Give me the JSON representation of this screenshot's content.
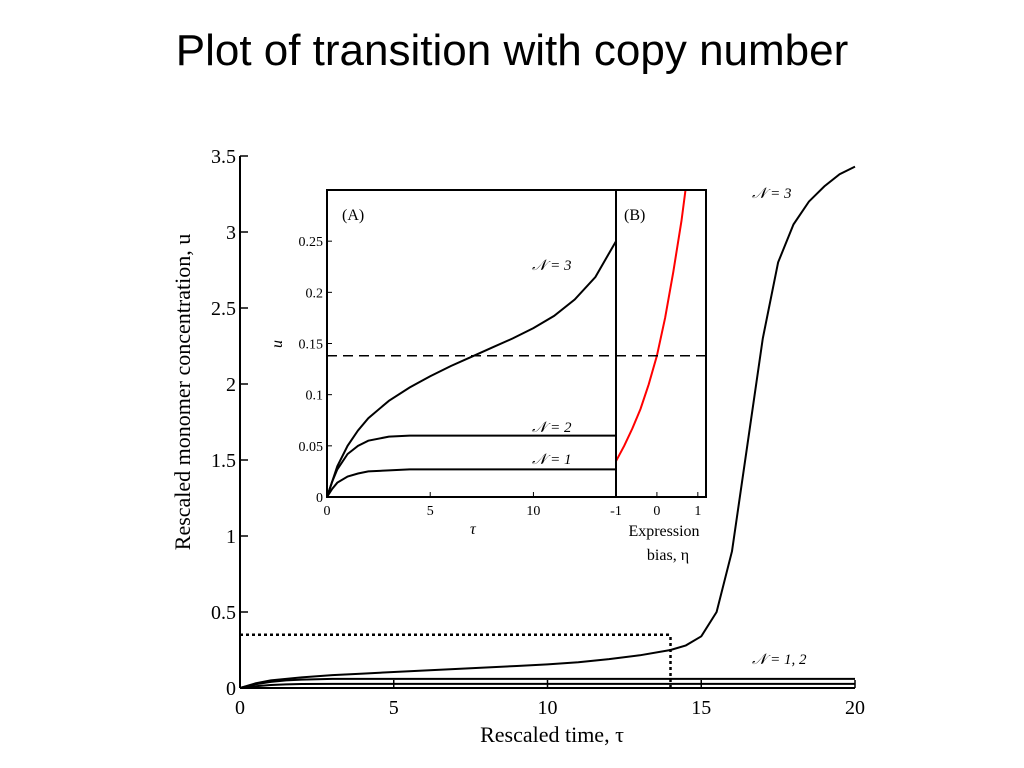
{
  "slide": {
    "title": "Plot of transition with copy number"
  },
  "chart_data": [
    {
      "type": "line",
      "id": "main",
      "xlabel": "Rescaled time, τ",
      "ylabel": "Rescaled monomer concentration, u",
      "xlim": [
        0,
        20
      ],
      "ylim": [
        0,
        3.5
      ],
      "xticks": [
        0,
        5,
        10,
        15,
        20
      ],
      "xtick_labels": [
        "0",
        "5",
        "10",
        "15",
        "20"
      ],
      "yticks": [
        0,
        0.5,
        1,
        1.5,
        2,
        2.5,
        3,
        3.5
      ],
      "ytick_labels": [
        "0",
        "0.5",
        "1",
        "1.5",
        "2",
        "2.5",
        "3",
        "3.5"
      ],
      "grid": false,
      "series": [
        {
          "name": "N = 3",
          "label": "𝒩 = 3",
          "color": "#000000",
          "dash": "solid",
          "x": [
            0,
            0.5,
            1,
            2,
            3,
            4,
            5,
            6,
            7,
            8,
            9,
            10,
            11,
            12,
            13,
            14,
            14.5,
            15,
            15.5,
            16,
            16.5,
            17,
            17.5,
            18,
            18.5,
            19,
            19.5,
            20
          ],
          "y": [
            0,
            0.03,
            0.05,
            0.07,
            0.085,
            0.095,
            0.105,
            0.115,
            0.125,
            0.135,
            0.145,
            0.155,
            0.17,
            0.19,
            0.215,
            0.25,
            0.28,
            0.34,
            0.5,
            0.9,
            1.6,
            2.3,
            2.8,
            3.05,
            3.2,
            3.3,
            3.38,
            3.43
          ]
        },
        {
          "name": "N = 1, 2 (upper)",
          "label": "𝒩 = 1, 2",
          "color": "#000000",
          "dash": "solid",
          "x": [
            0,
            0.5,
            1,
            1.5,
            2,
            3,
            4,
            6,
            10,
            14,
            20
          ],
          "y": [
            0,
            0.025,
            0.04,
            0.05,
            0.055,
            0.06,
            0.06,
            0.06,
            0.06,
            0.06,
            0.06
          ]
        },
        {
          "name": "N = 1, 2 (lower)",
          "label": "",
          "color": "#000000",
          "dash": "solid",
          "x": [
            0,
            0.5,
            1,
            1.5,
            2,
            3,
            4,
            6,
            10,
            14,
            20
          ],
          "y": [
            0,
            0.012,
            0.02,
            0.024,
            0.026,
            0.027,
            0.027,
            0.027,
            0.027,
            0.027,
            0.027
          ]
        }
      ],
      "annotations": [
        {
          "type": "dotted-line",
          "x": [
            0,
            14
          ],
          "y": [
            0.35,
            0.35
          ]
        },
        {
          "type": "dotted-line",
          "x": [
            14,
            14
          ],
          "y": [
            0,
            0.35
          ]
        }
      ]
    },
    {
      "type": "line",
      "id": "inset-A",
      "panel": "(A)",
      "xlabel": "τ",
      "ylabel": "u",
      "xlim": [
        0,
        14
      ],
      "ylim": [
        0,
        0.3
      ],
      "xticks": [
        0,
        5,
        10
      ],
      "xtick_labels": [
        "0",
        "5",
        "10"
      ],
      "yticks": [
        0,
        0.05,
        0.1,
        0.15,
        0.2,
        0.25
      ],
      "ytick_labels": [
        "0",
        "0.05",
        "0.1",
        "0.15",
        "0.2",
        "0.25"
      ],
      "series": [
        {
          "name": "N = 3",
          "label": "𝒩 = 3",
          "color": "#000000",
          "x": [
            0,
            0.25,
            0.5,
            1,
            1.5,
            2,
            3,
            4,
            5,
            6,
            7,
            8,
            9,
            10,
            11,
            12,
            13,
            14
          ],
          "y": [
            0,
            0.015,
            0.03,
            0.05,
            0.065,
            0.077,
            0.094,
            0.107,
            0.118,
            0.128,
            0.137,
            0.146,
            0.155,
            0.165,
            0.177,
            0.193,
            0.215,
            0.25
          ]
        },
        {
          "name": "N = 2",
          "label": "𝒩 = 2",
          "color": "#000000",
          "x": [
            0,
            0.25,
            0.5,
            1,
            1.5,
            2,
            3,
            4,
            6,
            10,
            14
          ],
          "y": [
            0,
            0.015,
            0.027,
            0.042,
            0.05,
            0.055,
            0.059,
            0.06,
            0.06,
            0.06,
            0.06
          ]
        },
        {
          "name": "N = 1",
          "label": "𝒩 = 1",
          "color": "#000000",
          "x": [
            0,
            0.25,
            0.5,
            1,
            1.5,
            2,
            3,
            4,
            6,
            10,
            14
          ],
          "y": [
            0,
            0.008,
            0.014,
            0.02,
            0.023,
            0.025,
            0.026,
            0.027,
            0.027,
            0.027,
            0.027
          ]
        }
      ],
      "annotations": [
        {
          "type": "dashed-line",
          "y": 0.138
        }
      ]
    },
    {
      "type": "line",
      "id": "inset-B",
      "panel": "(B)",
      "xlabel": "Expression bias, η",
      "xlabel_lines": [
        "Expression",
        "bias, η"
      ],
      "xlim": [
        -1,
        1.2
      ],
      "ylim": [
        0,
        0.3
      ],
      "xticks": [
        -1,
        0,
        1
      ],
      "xtick_labels": [
        "-1",
        "0",
        "1"
      ],
      "series": [
        {
          "name": "u vs η",
          "label": "",
          "color": "#ff0000",
          "x": [
            -1,
            -0.8,
            -0.6,
            -0.4,
            -0.2,
            0,
            0.2,
            0.4,
            0.6,
            0.7
          ],
          "y": [
            0.035,
            0.05,
            0.067,
            0.086,
            0.11,
            0.138,
            0.175,
            0.22,
            0.27,
            0.3
          ]
        }
      ],
      "annotations": [
        {
          "type": "dashed-line",
          "y": 0.138
        }
      ]
    }
  ]
}
